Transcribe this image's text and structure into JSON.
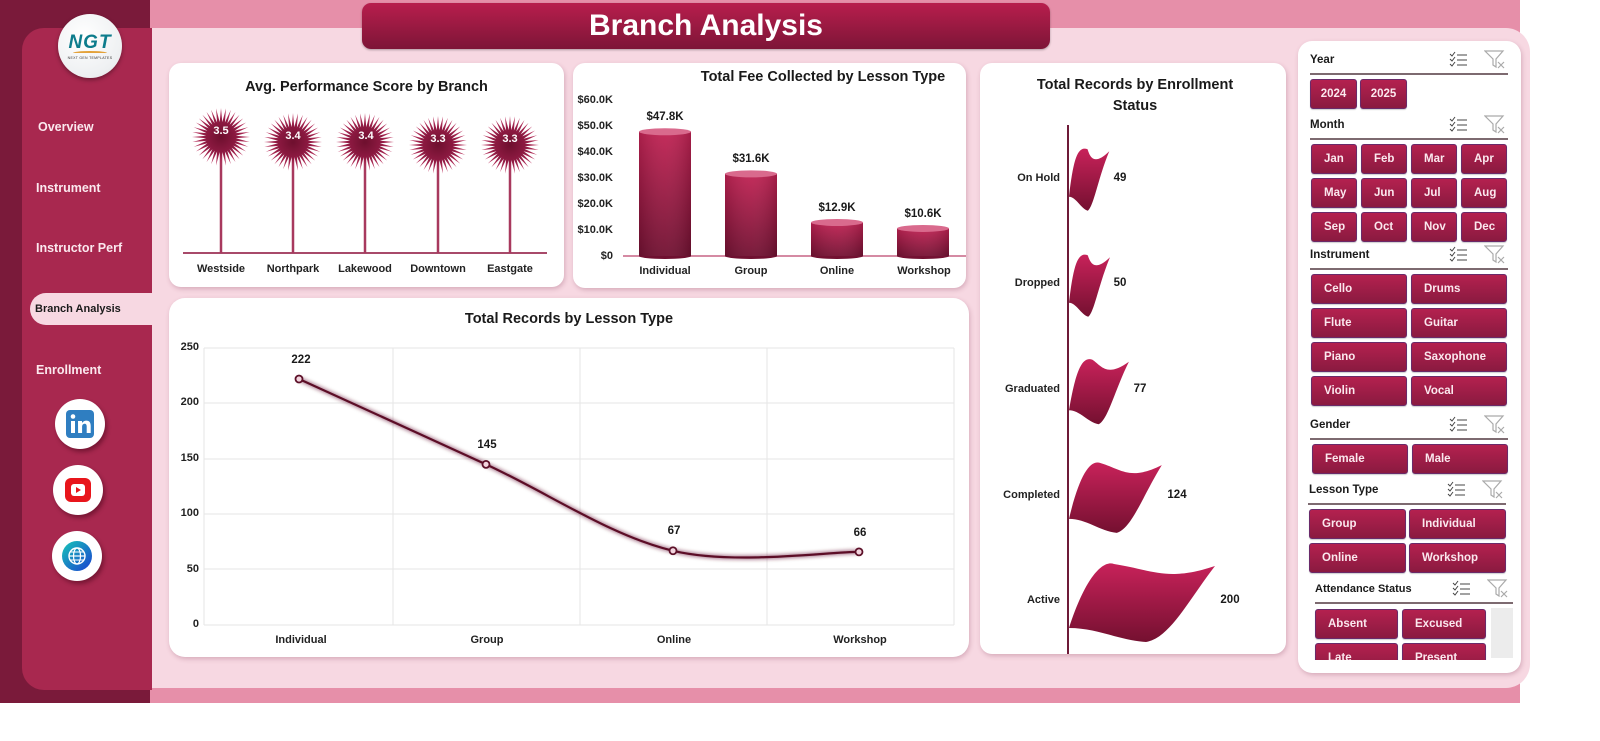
{
  "app": {
    "title": "Branch Analysis",
    "logo": {
      "text": "NGT",
      "subtitle": "NEXT GEN TEMPLATES"
    }
  },
  "sidebar": {
    "items": [
      {
        "label": "Overview",
        "active": false
      },
      {
        "label": "Instrument",
        "active": false
      },
      {
        "label": "Instructor Perf",
        "active": false
      },
      {
        "label": "Branch  Analysis",
        "active": true
      },
      {
        "label": "Enrollment",
        "active": false
      }
    ],
    "social": [
      {
        "icon": "linkedin-icon",
        "label": "in"
      },
      {
        "icon": "youtube-icon"
      },
      {
        "icon": "globe-icon"
      }
    ]
  },
  "colors": {
    "primary": "#a8284f",
    "dark": "#7a1a3a",
    "outer_pink": "#e68fa9",
    "panel_pink": "#f7d8e2",
    "bar_top": "#c02253",
    "bar_bottom": "#6e1030",
    "line": "#5c1028"
  },
  "chart_data": [
    {
      "id": "perf",
      "type": "bar",
      "title": "Avg. Performance Score by Branch",
      "categories": [
        "Westside",
        "Northpark",
        "Lakewood",
        "Downtown",
        "Eastgate"
      ],
      "values": [
        3.5,
        3.4,
        3.4,
        3.3,
        3.3
      ],
      "labels": [
        "3.5",
        "3.4",
        "3.4",
        "3.3",
        "3.3"
      ],
      "style": "lollipop-starburst",
      "grid": false
    },
    {
      "id": "fee",
      "type": "bar",
      "title": "Total Fee Collected by Lesson Type",
      "categories": [
        "Individual",
        "Group",
        "Online",
        "Workshop"
      ],
      "values": [
        47800,
        31600,
        12900,
        10600
      ],
      "labels": [
        "$47.8K",
        "$31.6K",
        "$12.9K",
        "$10.6K"
      ],
      "yticks": [
        "$60.0K",
        "$50.0K",
        "$40.0K",
        "$30.0K",
        "$20.0K",
        "$10.0K",
        "$0"
      ],
      "ylim": [
        0,
        60000
      ],
      "style": "cylinder",
      "grid": false
    },
    {
      "id": "records",
      "type": "line",
      "title": "Total Records by Lesson Type",
      "categories": [
        "Individual",
        "Group",
        "Online",
        "Workshop"
      ],
      "values": [
        222,
        145,
        67,
        66
      ],
      "labels": [
        "222",
        "145",
        "67",
        "66"
      ],
      "yticks": [
        "250",
        "200",
        "150",
        "100",
        "50",
        "0"
      ],
      "ylim": [
        0,
        250
      ],
      "grid": true,
      "smooth": true
    },
    {
      "id": "enroll",
      "type": "bar",
      "orientation": "horizontal",
      "title": "Total Records by Enrollment Status",
      "title_lines": [
        "Total Records by Enrollment",
        "Status"
      ],
      "categories": [
        "On Hold",
        "Dropped",
        "Graduated",
        "Completed",
        "Active"
      ],
      "values": [
        49,
        50,
        77,
        124,
        200
      ],
      "labels": [
        "49",
        "50",
        "77",
        "124",
        "200"
      ],
      "style": "flag",
      "grid": false
    }
  ],
  "slicers": [
    {
      "title": "Year",
      "items": [
        "2024",
        "2025"
      ]
    },
    {
      "title": "Month",
      "items": [
        "Jan",
        "Feb",
        "Mar",
        "Apr",
        "May",
        "Jun",
        "Jul",
        "Aug",
        "Sep",
        "Oct",
        "Nov",
        "Dec"
      ]
    },
    {
      "title": "Instrument",
      "items": [
        "Cello",
        "Drums",
        "Flute",
        "Guitar",
        "Piano",
        "Saxophone",
        "Violin",
        "Vocal"
      ]
    },
    {
      "title": "Gender",
      "items": [
        "Female",
        "Male"
      ]
    },
    {
      "title": "Lesson Type",
      "items": [
        "Group",
        "Individual",
        "Online",
        "Workshop"
      ]
    },
    {
      "title": "Attendance Status",
      "items": [
        "Absent",
        "Excused",
        "Late",
        "Present"
      ]
    }
  ]
}
